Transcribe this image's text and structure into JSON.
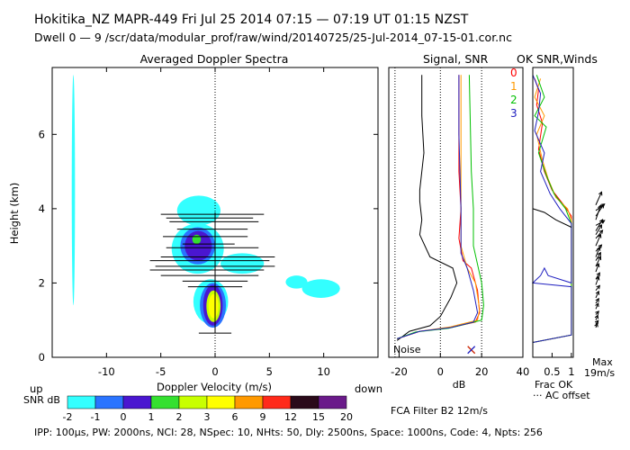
{
  "header": {
    "line1": "Hokitika_NZ  MAPR-449  Fri Jul 25 2014 07:15 — 07:19 UT 01:15 NZST",
    "line2": "Dwell  0 — 9   /scr/data/modular_prof/raw/wind/20140725/25-Jul-2014_07-15-01.cor.nc"
  },
  "footer": {
    "params": "IPP: 100μs,  PW: 2000ns,  NCI:  28,  NSpec: 10, NHts: 50,  Dly: 2500ns,  Space: 1000ns,  Code: 4,  Npts: 256",
    "filter": "FCA Filter B2 12m/s"
  },
  "colors": {
    "snr_palette": [
      "#33ffff",
      "#2a74ff",
      "#4a16d0",
      "#35e030",
      "#c8ff00",
      "#ffff00",
      "#ff9900",
      "#ff2a1a",
      "#2a0a1a",
      "#6a1a8a"
    ],
    "line_0": "#ff0000",
    "line_1": "#ff9900",
    "line_2": "#00c000",
    "line_3": "#2020c0"
  },
  "chart_data": [
    {
      "type": "heatmap",
      "title": "Averaged Doppler Spectra",
      "xlabel": "Doppler Velocity (m/s)",
      "ylabel": "Height (km)",
      "xlim": [
        -15,
        15
      ],
      "ylim": [
        0,
        7.8
      ],
      "xticks": [
        -10,
        -5,
        0,
        5,
        10
      ],
      "yticks": [
        0,
        2,
        4,
        6
      ],
      "x_left_note": "up",
      "x_right_note": "down",
      "colorbar": {
        "label": "SNR dB",
        "ticks": [
          "-2",
          "-1",
          "0",
          "1",
          "2",
          "3",
          "6",
          "9",
          "12",
          "15",
          "20"
        ]
      },
      "regions": [
        {
          "x": [
            -13.2,
            -12.9
          ],
          "y": [
            1.4,
            7.6
          ],
          "level": 0
        },
        {
          "x": [
            -3.5,
            0.5
          ],
          "y": [
            3.55,
            4.35
          ],
          "level": 0
        },
        {
          "x": [
            -4.0,
            0.8
          ],
          "y": [
            2.25,
            3.6
          ],
          "level": 0
        },
        {
          "x": [
            -2.0,
            1.2
          ],
          "y": [
            0.9,
            2.1
          ],
          "level": 0
        },
        {
          "x": [
            0.5,
            4.5
          ],
          "y": [
            2.25,
            2.8
          ],
          "level": 0
        },
        {
          "x": [
            6.5,
            8.5
          ],
          "y": [
            1.85,
            2.2
          ],
          "level": 0
        },
        {
          "x": [
            8.0,
            11.5
          ],
          "y": [
            1.6,
            2.1
          ],
          "level": 0
        },
        {
          "x": [
            -3.2,
            0.0
          ],
          "y": [
            2.5,
            3.5
          ],
          "level": 1
        },
        {
          "x": [
            -1.4,
            1.0
          ],
          "y": [
            0.8,
            2.0
          ],
          "level": 1
        },
        {
          "x": [
            -2.8,
            -0.3
          ],
          "y": [
            2.6,
            3.4
          ],
          "level": 2
        },
        {
          "x": [
            -1.1,
            0.7
          ],
          "y": [
            0.85,
            1.95
          ],
          "level": 2
        },
        {
          "x": [
            -2.1,
            -1.3
          ],
          "y": [
            3.05,
            3.3
          ],
          "level": 3
        },
        {
          "x": [
            -0.8,
            0.5
          ],
          "y": [
            0.95,
            1.8
          ],
          "level": 4
        },
        {
          "x": [
            -0.6,
            0.3
          ],
          "y": [
            1.05,
            1.7
          ],
          "level": 5
        }
      ],
      "error_bars": [
        {
          "y": 3.85,
          "x0": -5.0,
          "x1": 4.5
        },
        {
          "y": 3.75,
          "x0": -4.5,
          "x1": 3.5
        },
        {
          "y": 3.65,
          "x0": -4.2,
          "x1": 4.0
        },
        {
          "y": 3.45,
          "x0": -3.5,
          "x1": 3.0
        },
        {
          "y": 3.25,
          "x0": -4.8,
          "x1": 3.0
        },
        {
          "y": 3.05,
          "x0": -3.0,
          "x1": 1.8
        },
        {
          "y": 2.95,
          "x0": -4.5,
          "x1": 4.0
        },
        {
          "y": 2.7,
          "x0": -5.0,
          "x1": 5.5
        },
        {
          "y": 2.6,
          "x0": -6.0,
          "x1": 5.0
        },
        {
          "y": 2.45,
          "x0": -5.5,
          "x1": 5.5
        },
        {
          "y": 2.35,
          "x0": -6.0,
          "x1": 4.5
        },
        {
          "y": 2.2,
          "x0": -5.0,
          "x1": 4.0
        },
        {
          "y": 2.05,
          "x0": -3.0,
          "x1": 3.0
        },
        {
          "y": 1.9,
          "x0": -2.5,
          "x1": 2.5
        },
        {
          "y": 0.65,
          "x0": -1.5,
          "x1": 1.5
        }
      ]
    },
    {
      "type": "line",
      "title": "Signal, SNR",
      "xlabel": "dB",
      "xlim": [
        -25,
        40
      ],
      "xticks": [
        -20,
        0,
        20,
        40
      ],
      "guides_x": [
        -22,
        0,
        20
      ],
      "noise_label": "Noise",
      "series": [
        {
          "name": "signal",
          "color": "#000000",
          "points": [
            [
              -21,
              0.45
            ],
            [
              -15,
              0.7
            ],
            [
              -5,
              0.85
            ],
            [
              0,
              1.1
            ],
            [
              5,
              1.6
            ],
            [
              8,
              2.0
            ],
            [
              6,
              2.4
            ],
            [
              -5,
              2.7
            ],
            [
              -10,
              3.3
            ],
            [
              -9,
              3.7
            ],
            [
              -10,
              4.2
            ],
            [
              -10,
              4.5
            ],
            [
              -8,
              5.5
            ],
            [
              -9,
              6.5
            ],
            [
              -9,
              7.6
            ]
          ]
        },
        {
          "name": "0",
          "color": "#ff0000",
          "points": [
            [
              -21,
              0.5
            ],
            [
              -10,
              0.7
            ],
            [
              5,
              0.8
            ],
            [
              17,
              0.95
            ],
            [
              19,
              1.2
            ],
            [
              18,
              1.8
            ],
            [
              15,
              2.4
            ],
            [
              11,
              2.6
            ],
            [
              9,
              3.2
            ],
            [
              10,
              4.0
            ],
            [
              9,
              5.0
            ],
            [
              9,
              6.5
            ],
            [
              9,
              7.6
            ]
          ]
        },
        {
          "name": "1",
          "color": "#ff9900",
          "points": [
            [
              -21,
              0.5
            ],
            [
              -10,
              0.7
            ],
            [
              5,
              0.82
            ],
            [
              18,
              1.0
            ],
            [
              19,
              1.3
            ],
            [
              17,
              2.0
            ],
            [
              13,
              2.4
            ],
            [
              10,
              3.0
            ],
            [
              10,
              4.0
            ],
            [
              10,
              5.5
            ],
            [
              10,
              7.6
            ]
          ]
        },
        {
          "name": "2",
          "color": "#00c000",
          "points": [
            [
              -21,
              0.5
            ],
            [
              -12,
              0.68
            ],
            [
              4,
              0.78
            ],
            [
              20,
              1.0
            ],
            [
              21,
              1.4
            ],
            [
              20,
              2.0
            ],
            [
              18,
              2.5
            ],
            [
              16,
              3.0
            ],
            [
              16,
              4.0
            ],
            [
              15,
              5.0
            ],
            [
              14,
              7.6
            ]
          ]
        },
        {
          "name": "3",
          "color": "#2020c0",
          "points": [
            [
              -21,
              0.5
            ],
            [
              -10,
              0.7
            ],
            [
              5,
              0.8
            ],
            [
              16,
              0.95
            ],
            [
              18,
              1.2
            ],
            [
              16,
              1.8
            ],
            [
              13,
              2.4
            ],
            [
              10,
              2.8
            ],
            [
              10,
              4.0
            ],
            [
              9,
              6.0
            ],
            [
              9,
              7.6
            ]
          ]
        }
      ],
      "marker": {
        "x": 15,
        "y": 0.2
      }
    },
    {
      "type": "line",
      "title": "OK SNR,Winds",
      "xlabel": "Frac OK",
      "xlim": [
        0,
        1.05
      ],
      "xticks": [
        "0.5",
        "1"
      ],
      "x_note": "··· AC offset",
      "legend": [
        "0",
        "1",
        "2",
        "3"
      ],
      "series": [
        {
          "name": "0",
          "color": "#ff0000",
          "points": [
            [
              0.05,
              7.5
            ],
            [
              0.15,
              7.2
            ],
            [
              0.1,
              6.8
            ],
            [
              0.25,
              6.3
            ],
            [
              0.15,
              5.6
            ],
            [
              0.3,
              5.0
            ],
            [
              0.5,
              4.5
            ],
            [
              0.8,
              4.1
            ],
            [
              1.0,
              3.8
            ],
            [
              1.0,
              3.5
            ],
            [
              1.0,
              0.6
            ],
            [
              0.0,
              0.4
            ]
          ]
        },
        {
          "name": "1",
          "color": "#ff9900",
          "points": [
            [
              0.2,
              7.5
            ],
            [
              0.05,
              7.0
            ],
            [
              0.3,
              6.5
            ],
            [
              0.1,
              6.0
            ],
            [
              0.25,
              5.3
            ],
            [
              0.4,
              4.8
            ],
            [
              0.6,
              4.3
            ],
            [
              0.9,
              4.0
            ],
            [
              1.0,
              3.7
            ],
            [
              1.0,
              0.6
            ],
            [
              0.0,
              0.4
            ]
          ]
        },
        {
          "name": "2",
          "color": "#00c000",
          "points": [
            [
              0.1,
              7.6
            ],
            [
              0.3,
              7.0
            ],
            [
              0.05,
              6.5
            ],
            [
              0.35,
              6.2
            ],
            [
              0.15,
              5.5
            ],
            [
              0.35,
              4.9
            ],
            [
              0.55,
              4.4
            ],
            [
              0.85,
              4.0
            ],
            [
              1.0,
              3.6
            ],
            [
              1.0,
              0.6
            ],
            [
              0.0,
              0.4
            ]
          ]
        },
        {
          "name": "3",
          "color": "#2020c0",
          "points": [
            [
              0.0,
              7.6
            ],
            [
              0.2,
              7.1
            ],
            [
              0.15,
              6.6
            ],
            [
              0.05,
              6.1
            ],
            [
              0.3,
              5.5
            ],
            [
              0.2,
              5.0
            ],
            [
              0.45,
              4.4
            ],
            [
              0.7,
              4.0
            ],
            [
              1.0,
              3.6
            ],
            [
              1.0,
              2.0
            ],
            [
              0.4,
              2.2
            ],
            [
              0.3,
              2.4
            ],
            [
              0.2,
              2.2
            ],
            [
              0.0,
              2.0
            ],
            [
              1.0,
              1.9
            ],
            [
              1.0,
              0.6
            ],
            [
              0.0,
              0.4
            ]
          ]
        },
        {
          "name": "ok",
          "color": "#000000",
          "points": [
            [
              0.0,
              4.0
            ],
            [
              0.3,
              3.9
            ],
            [
              0.6,
              3.7
            ],
            [
              1.0,
              3.5
            ]
          ]
        }
      ]
    },
    {
      "type": "scatter",
      "title": "Winds",
      "max_label": "Max",
      "max_value_label": "19m/s",
      "barbs": [
        {
          "y": 4.1,
          "u": 0.6,
          "v": 0.8
        },
        {
          "y": 3.95,
          "u": 0.9,
          "v": 0.4
        },
        {
          "y": 3.8,
          "u": 0.8,
          "v": 0.7
        },
        {
          "y": 3.7,
          "u": 0.5,
          "v": 0.9
        },
        {
          "y": 3.55,
          "u": 0.9,
          "v": 0.3
        },
        {
          "y": 3.4,
          "u": 0.7,
          "v": 0.7
        },
        {
          "y": 3.3,
          "u": 0.6,
          "v": 0.6
        },
        {
          "y": 3.2,
          "u": 0.7,
          "v": 0.5
        },
        {
          "y": 3.0,
          "u": 0.5,
          "v": 0.7
        },
        {
          "y": 2.85,
          "u": 0.6,
          "v": 0.4
        },
        {
          "y": 2.7,
          "u": 0.4,
          "v": 0.6
        },
        {
          "y": 2.6,
          "u": 0.5,
          "v": 0.5
        },
        {
          "y": 2.45,
          "u": 0.5,
          "v": 0.6
        },
        {
          "y": 2.3,
          "u": 0.3,
          "v": 0.5
        },
        {
          "y": 2.1,
          "u": 0.4,
          "v": 0.4
        },
        {
          "y": 1.95,
          "u": 0.3,
          "v": 0.5
        },
        {
          "y": 1.8,
          "u": 0.4,
          "v": 0.3
        },
        {
          "y": 1.6,
          "u": 0.3,
          "v": 0.4
        },
        {
          "y": 1.45,
          "u": 0.3,
          "v": 0.3
        },
        {
          "y": 1.3,
          "u": 0.25,
          "v": 0.35
        },
        {
          "y": 1.15,
          "u": 0.3,
          "v": 0.2
        },
        {
          "y": 1.0,
          "u": 0.2,
          "v": 0.3
        },
        {
          "y": 0.9,
          "u": 0.25,
          "v": 0.2
        },
        {
          "y": 0.8,
          "u": 0.15,
          "v": 0.25
        }
      ]
    }
  ]
}
